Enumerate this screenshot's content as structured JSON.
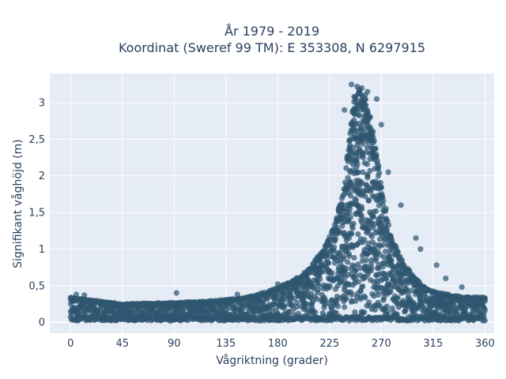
{
  "chart_data": {
    "type": "scatter",
    "title_line1": "År 1979 - 2019",
    "title_line2": "Koordinat (Sweref 99 TM): E 353308, N 6297915",
    "xlabel": "Vågriktning (grader)",
    "ylabel": "Signifikant våghöjd (m)",
    "xlim": [
      -18,
      368
    ],
    "ylim": [
      -0.15,
      3.4
    ],
    "xticks": [
      0,
      45,
      90,
      135,
      180,
      225,
      270,
      315,
      360
    ],
    "xtick_labels": [
      "0",
      "45",
      "90",
      "135",
      "180",
      "225",
      "270",
      "315",
      "360"
    ],
    "yticks": [
      0,
      0.5,
      1,
      1.5,
      2,
      2.5,
      3
    ],
    "ytick_labels": [
      "0",
      "0,5",
      "1",
      "1,5",
      "2",
      "2,5",
      "3"
    ],
    "grid": true,
    "marker_color": "#2f5670",
    "plot_background": "#e5ecf6",
    "envelope": {
      "direction": [
        0,
        20,
        45,
        90,
        120,
        150,
        175,
        190,
        205,
        220,
        230,
        238,
        243,
        247,
        252,
        256,
        260,
        265,
        270,
        278,
        290,
        300,
        310,
        320,
        340,
        360
      ],
      "max_height": [
        0.34,
        0.3,
        0.25,
        0.27,
        0.29,
        0.33,
        0.44,
        0.55,
        0.7,
        1.0,
        1.35,
        1.9,
        2.7,
        3.15,
        3.2,
        3.1,
        2.9,
        2.4,
        1.85,
        1.2,
        0.8,
        0.6,
        0.45,
        0.4,
        0.35,
        0.34
      ]
    },
    "outliers": [
      {
        "x": 244,
        "y": 3.25
      },
      {
        "x": 249,
        "y": 3.22
      },
      {
        "x": 253,
        "y": 3.2
      },
      {
        "x": 258,
        "y": 3.15
      },
      {
        "x": 238,
        "y": 2.9
      },
      {
        "x": 266,
        "y": 3.05
      },
      {
        "x": 270,
        "y": 2.7
      },
      {
        "x": 276,
        "y": 2.05
      },
      {
        "x": 287,
        "y": 1.6
      },
      {
        "x": 300,
        "y": 1.15
      },
      {
        "x": 304,
        "y": 1.0
      },
      {
        "x": 318,
        "y": 0.78
      },
      {
        "x": 326,
        "y": 0.6
      },
      {
        "x": 340,
        "y": 0.48
      },
      {
        "x": 92,
        "y": 0.4
      },
      {
        "x": 5,
        "y": 0.38
      },
      {
        "x": 12,
        "y": 0.37
      },
      {
        "x": 145,
        "y": 0.38
      },
      {
        "x": 180,
        "y": 0.52
      }
    ]
  }
}
